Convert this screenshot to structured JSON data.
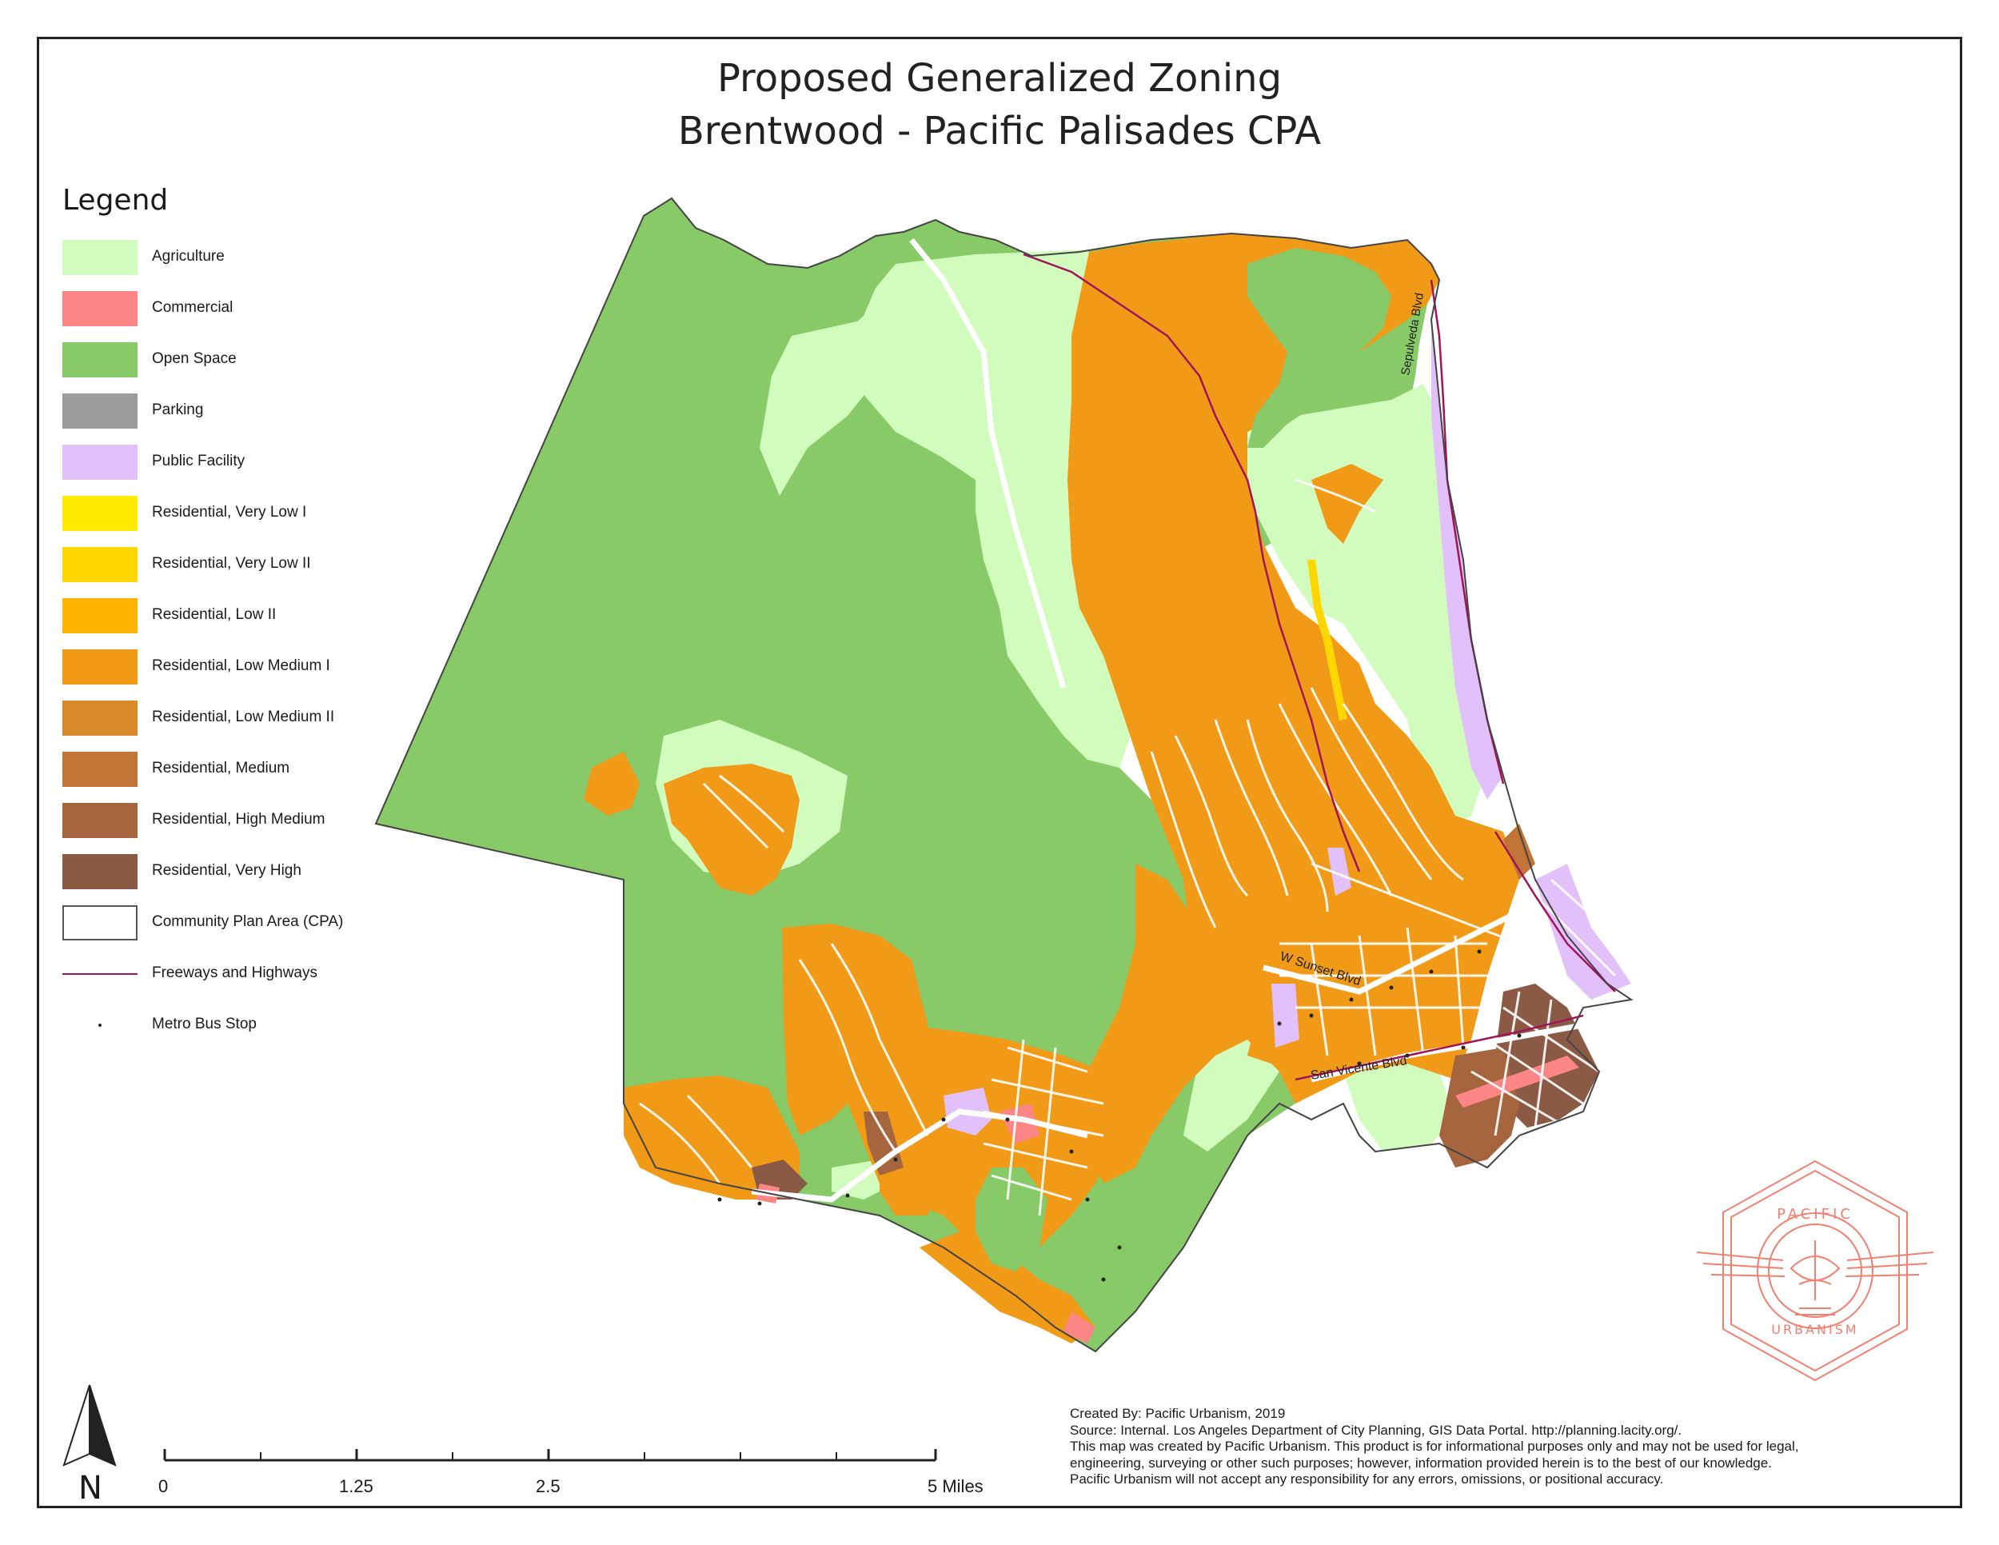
{
  "title": {
    "line1": "Proposed Generalized Zoning",
    "line2": "Brentwood - Pacific Palisades CPA"
  },
  "legend": {
    "title": "Legend",
    "items": [
      {
        "label": "Agriculture",
        "color": "#d1fcbd"
      },
      {
        "label": "Commercial",
        "color": "#fc8585"
      },
      {
        "label": "Open Space",
        "color": "#87ca67"
      },
      {
        "label": "Parking",
        "color": "#9c9c9c"
      },
      {
        "label": "Public Facility",
        "color": "#e2c1fb"
      },
      {
        "label": "Residential, Very Low I",
        "color": "#ffeb00"
      },
      {
        "label": "Residential, Very Low II",
        "color": "#ffd700"
      },
      {
        "label": "Residential, Low II",
        "color": "#ffb500"
      },
      {
        "label": "Residential, Low Medium I",
        "color": "#f09a18"
      },
      {
        "label": "Residential, Low Medium II",
        "color": "#d88a2b"
      },
      {
        "label": "Residential, Medium",
        "color": "#c07436"
      },
      {
        "label": "Residential, High Medium",
        "color": "#a5653e"
      },
      {
        "label": "Residential, Very High",
        "color": "#8a5a44"
      },
      {
        "label": "Community Plan Area (CPA)",
        "color": "#ffffff"
      },
      {
        "label": "Freeways and Highways",
        "color": "#a0145a"
      },
      {
        "label": "Metro Bus Stop",
        "color": "#222222"
      }
    ]
  },
  "map": {
    "street_labels": [
      "Sepulveda Blvd",
      "W Sunset Blvd",
      "San Vicente Blvd"
    ]
  },
  "north_arrow": {
    "label": "N"
  },
  "scale_bar": {
    "ticks": [
      "0",
      "1.25",
      "2.5",
      "5 Miles"
    ]
  },
  "credits": {
    "line1": "Created By: Pacific Urbanism, 2019",
    "line2": "Source: Internal. Los Angeles Department of City Planning, GIS Data Portal. http://planning.lacity.org/.",
    "line3": "This map was created by Pacific Urbanism. This product is for informational purposes only and may not be used for legal,",
    "line4": "engineering, surveying or other such purposes; however, information provided herein is to the best of our knowledge.",
    "line5": "Pacific Urbanism will not accept any responsibility for any errors, omissions, or positional accuracy."
  },
  "logo": {
    "top_text": "PACIFIC",
    "bottom_text": "URBANISM",
    "color": "#f08070"
  }
}
